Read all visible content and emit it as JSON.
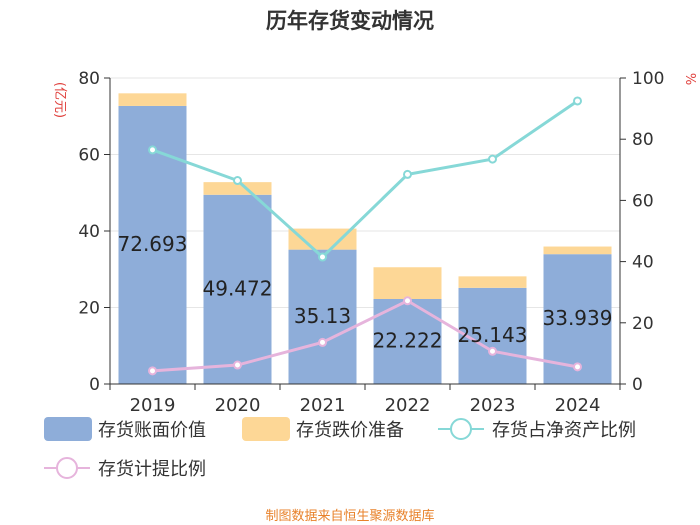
{
  "chart_data": {
    "type": "bar",
    "title": "历年存货变动情况",
    "categories": [
      "2019",
      "2020",
      "2021",
      "2022",
      "2023",
      "2024"
    ],
    "series": [
      {
        "name": "存货账面价值",
        "kind": "bar-stack",
        "axis": "left",
        "values": [
          72.693,
          49.472,
          35.13,
          22.222,
          25.143,
          33.939
        ],
        "color": "#8eadd9"
      },
      {
        "name": "存货跌价准备",
        "kind": "bar-stack",
        "axis": "left",
        "values": [
          3.3,
          3.3,
          5.5,
          8.3,
          3.0,
          2.0
        ],
        "color": "#fdd796"
      },
      {
        "name": "存货占净资产比例",
        "kind": "line",
        "axis": "right",
        "values": [
          76.5,
          66.5,
          41.5,
          68.5,
          73.5,
          92.5
        ],
        "color": "#86d8d7"
      },
      {
        "name": "存货计提比例",
        "kind": "line",
        "axis": "right",
        "values": [
          4.3,
          6.2,
          13.6,
          27.2,
          10.7,
          5.6
        ],
        "color": "#e6b4dc"
      }
    ],
    "data_labels": [
      "72.693",
      "49.472",
      "35.13",
      "22.222",
      "25.143",
      "33.939"
    ],
    "y_left": {
      "label": "(亿元)",
      "ylim": [
        0,
        80
      ],
      "ticks": [
        "0",
        "20",
        "40",
        "60",
        "80"
      ]
    },
    "y_right": {
      "label": "%",
      "ylim": [
        0,
        100
      ],
      "ticks": [
        "0",
        "20",
        "40",
        "60",
        "80",
        "100"
      ]
    },
    "grid": true,
    "legend_position": "bottom"
  },
  "footer": {
    "source": "制图数据来自恒生聚源数据库"
  },
  "colors": {
    "axis_label": "#e0413d",
    "source": "#e8822b",
    "text": "#333333",
    "grid": "#e6e6e6"
  }
}
